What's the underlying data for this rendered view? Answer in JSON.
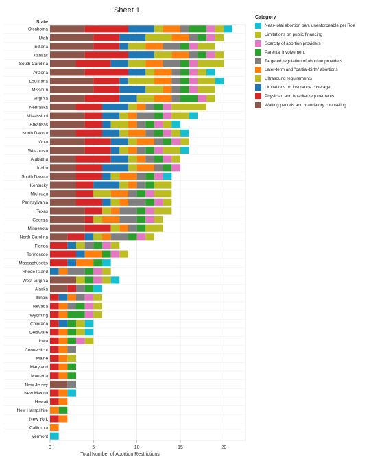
{
  "sheet_title": "Sheet 1",
  "row_header": "State",
  "legend": {
    "title": "Category",
    "items": [
      {
        "label": "Near-total abortion ban, unenforceable per Roe",
        "color": "#17becf"
      },
      {
        "label": "Limitations on public financing",
        "color": "#bcbd22"
      },
      {
        "label": "Scarcity of abortion providers",
        "color": "#e377c2"
      },
      {
        "label": "Parental involvement",
        "color": "#2ca02c"
      },
      {
        "label": "Targeted regulation of abortion providers",
        "color": "#7f7f7f"
      },
      {
        "label": "Later-term and \"partial-birth\" abortions",
        "color": "#ff7f0e"
      },
      {
        "label": "Ultrasound requirements",
        "color": "#bcbd22"
      },
      {
        "label": "Limitations on insurance coverage",
        "color": "#1f77b4"
      },
      {
        "label": "Physician and hospital requirements",
        "color": "#d62728"
      },
      {
        "label": "Waiting periods and mandatory counseling",
        "color": "#8c564b"
      }
    ]
  },
  "chart_data": {
    "type": "bar",
    "orientation": "horizontal",
    "stacked": true,
    "title": "Sheet 1",
    "xlabel": "Total Number of Abortion Restrictions",
    "ylabel": "State",
    "xlim": [
      0,
      22.5
    ],
    "xticks": [
      0,
      5,
      10,
      15,
      20
    ],
    "grid": "vertical",
    "legend_position": "right",
    "categories": [
      "Oklahoma",
      "Utah",
      "Indiana",
      "Kansas",
      "South Carolina",
      "Arizona",
      "Louisiana",
      "Missouri",
      "Virginia",
      "Nebraska",
      "Mississippi",
      "Arkansas",
      "North Dakota",
      "Ohio",
      "Wisconsin",
      "Alabama",
      "Idaho",
      "South Dakota",
      "Kentucky",
      "Michigan",
      "Pennsylvania",
      "Texas",
      "Georgia",
      "Minnesota",
      "North Carolina",
      "Florida",
      "Tennessee",
      "Massachusetts",
      "Rhode Island",
      "West Virginia",
      "Alaska",
      "Illinois",
      "Nevada",
      "Wyoming",
      "Colorado",
      "Delaware",
      "Iowa",
      "Connecticut",
      "Maine",
      "Maryland",
      "Montana",
      "New Jersey",
      "New Mexico",
      "Hawaii",
      "New Hampshire",
      "New York",
      "California",
      "Vermont"
    ],
    "stack_order": [
      "Waiting periods and mandatory counseling",
      "Physician and hospital requirements",
      "Limitations on insurance coverage",
      "Ultrasound requirements",
      "Later-term and \"partial-birth\" abortions",
      "Targeted regulation of abortion providers",
      "Parental involvement",
      "Scarcity of abortion providers",
      "Limitations on public financing",
      "Near-total abortion ban, unenforceable per Roe"
    ],
    "rows": [
      [
        4,
        5,
        3,
        1,
        2,
        1,
        2,
        1,
        1,
        1
      ],
      [
        5,
        3,
        3,
        3,
        2,
        1,
        1,
        1,
        1,
        0
      ],
      [
        5,
        3,
        1,
        2,
        2,
        2,
        1,
        1,
        2,
        0
      ],
      [
        4,
        5,
        3,
        2,
        2,
        1,
        1,
        1,
        1,
        0
      ],
      [
        3,
        4,
        2,
        2,
        2,
        2,
        1,
        1,
        3,
        0
      ],
      [
        4,
        5,
        2,
        1,
        2,
        1,
        1,
        1,
        1,
        1
      ],
      [
        5,
        3,
        1,
        3,
        2,
        1,
        1,
        1,
        2,
        1
      ],
      [
        5,
        3,
        3,
        2,
        1,
        1,
        1,
        1,
        2,
        0
      ],
      [
        4,
        4,
        2,
        2,
        2,
        1,
        2,
        1,
        1,
        0
      ],
      [
        3,
        3,
        3,
        1,
        1,
        1,
        1,
        1,
        4,
        0
      ],
      [
        4,
        2,
        2,
        1,
        1,
        2,
        1,
        1,
        2,
        1
      ],
      [
        4,
        2,
        1,
        2,
        1,
        1,
        1,
        1,
        1,
        1
      ],
      [
        3,
        3,
        2,
        1,
        2,
        1,
        1,
        1,
        1,
        1
      ],
      [
        4,
        3,
        2,
        1,
        2,
        1,
        1,
        1,
        1,
        0
      ],
      [
        4,
        3,
        1,
        1,
        1,
        1,
        1,
        1,
        2,
        1
      ],
      [
        3,
        4,
        2,
        1,
        1,
        1,
        1,
        1,
        1,
        0
      ],
      [
        3,
        3,
        3,
        1,
        2,
        1,
        1,
        1,
        0,
        0
      ],
      [
        3,
        3,
        1,
        1,
        2,
        1,
        1,
        1,
        0,
        1
      ],
      [
        3,
        2,
        3,
        1,
        1,
        1,
        1,
        0,
        2,
        0
      ],
      [
        3,
        2,
        0,
        2,
        2,
        1,
        1,
        1,
        2,
        0
      ],
      [
        3,
        3,
        1,
        1,
        1,
        2,
        1,
        1,
        1,
        0
      ],
      [
        4,
        2,
        0,
        1,
        1,
        2,
        1,
        1,
        2,
        0
      ],
      [
        4,
        1,
        0,
        1,
        2,
        2,
        1,
        1,
        1,
        0
      ],
      [
        4,
        3,
        0,
        1,
        1,
        1,
        1,
        0,
        2,
        0
      ],
      [
        2,
        2,
        1,
        1,
        1,
        2,
        1,
        1,
        1,
        0
      ],
      [
        0,
        2,
        1,
        1,
        0,
        1,
        1,
        1,
        1,
        0
      ],
      [
        0,
        3,
        1,
        0,
        2,
        0,
        1,
        1,
        1,
        0
      ],
      [
        0,
        2,
        1,
        0,
        2,
        0,
        1,
        0,
        0,
        1
      ],
      [
        0,
        0,
        1,
        0,
        1,
        2,
        1,
        1,
        1,
        0
      ],
      [
        3,
        0,
        0,
        1,
        0,
        0,
        1,
        1,
        1,
        1
      ],
      [
        2,
        1,
        0,
        0,
        0,
        1,
        1,
        0,
        0,
        1
      ],
      [
        0,
        1,
        1,
        0,
        1,
        1,
        0,
        1,
        1,
        0
      ],
      [
        0,
        1,
        0,
        0,
        1,
        1,
        1,
        1,
        1,
        0
      ],
      [
        0,
        1,
        0,
        0,
        1,
        0,
        2,
        1,
        1,
        0
      ],
      [
        0,
        1,
        1,
        0,
        0,
        0,
        1,
        0,
        1,
        1
      ],
      [
        0,
        1,
        0,
        0,
        1,
        0,
        1,
        0,
        1,
        1
      ],
      [
        0,
        1,
        0,
        0,
        1,
        0,
        1,
        1,
        1,
        0
      ],
      [
        0,
        1,
        0,
        0,
        1,
        1,
        0,
        0,
        0,
        0
      ],
      [
        0,
        1,
        0,
        0,
        1,
        0,
        0,
        0,
        1,
        0
      ],
      [
        0,
        1,
        0,
        0,
        1,
        0,
        1,
        0,
        0,
        0
      ],
      [
        0,
        1,
        0,
        0,
        1,
        0,
        1,
        0,
        0,
        0
      ],
      [
        2,
        0,
        0,
        0,
        0,
        1,
        0,
        0,
        0,
        0
      ],
      [
        0,
        1,
        0,
        0,
        1,
        0,
        0,
        0,
        0,
        1
      ],
      [
        0,
        1,
        0,
        0,
        1,
        0,
        0,
        0,
        0,
        0
      ],
      [
        0,
        0,
        0,
        0,
        1,
        0,
        1,
        0,
        0,
        0
      ],
      [
        0,
        1,
        0,
        0,
        1,
        0,
        0,
        0,
        0,
        0
      ],
      [
        0,
        0,
        0,
        0,
        1,
        0,
        0,
        0,
        0,
        0
      ],
      [
        0,
        0,
        0,
        0,
        0,
        0,
        0,
        0,
        0,
        1
      ]
    ]
  }
}
